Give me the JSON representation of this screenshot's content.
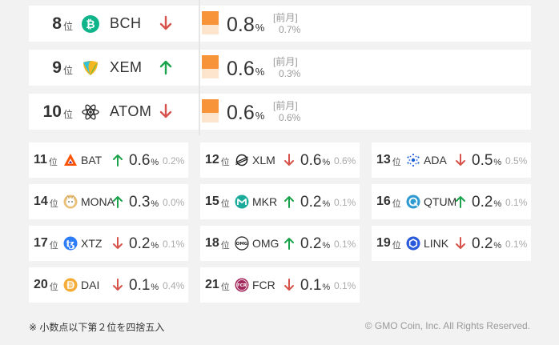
{
  "colors": {
    "up": "#1aa34a",
    "down": "#d6524a",
    "bar": "#f7943a",
    "bar_light": "#fde4cc"
  },
  "top": [
    {
      "rank": "8",
      "unit": "位",
      "symbol": "BCH",
      "direction": "down",
      "icon": "bch-icon",
      "pct": "0.8",
      "pct_unit": "%",
      "prev_label": "[前月]",
      "prev": "0.7%"
    },
    {
      "rank": "9",
      "unit": "位",
      "symbol": "XEM",
      "direction": "up",
      "icon": "xem-icon",
      "pct": "0.6",
      "pct_unit": "%",
      "prev_label": "[前月]",
      "prev": "0.3%"
    },
    {
      "rank": "10",
      "unit": "位",
      "symbol": "ATOM",
      "direction": "down",
      "icon": "atom-icon",
      "pct": "0.6",
      "pct_unit": "%",
      "prev_label": "[前月]",
      "prev": "0.6%"
    }
  ],
  "rows": [
    [
      {
        "rank": "11",
        "unit": "位",
        "symbol": "BAT",
        "direction": "up",
        "icon": "bat-icon",
        "pct": "0.6",
        "pct_unit": "%",
        "prev": "0.2%"
      },
      {
        "rank": "12",
        "unit": "位",
        "symbol": "XLM",
        "direction": "down",
        "icon": "xlm-icon",
        "pct": "0.6",
        "pct_unit": "%",
        "prev": "0.6%"
      },
      {
        "rank": "13",
        "unit": "位",
        "symbol": "ADA",
        "direction": "down",
        "icon": "ada-icon",
        "pct": "0.5",
        "pct_unit": "%",
        "prev": "0.5%"
      }
    ],
    [
      {
        "rank": "14",
        "unit": "位",
        "symbol": "MONA",
        "direction": "up",
        "icon": "mona-icon",
        "pct": "0.3",
        "pct_unit": "%",
        "prev": "0.0%"
      },
      {
        "rank": "15",
        "unit": "位",
        "symbol": "MKR",
        "direction": "up",
        "icon": "mkr-icon",
        "pct": "0.2",
        "pct_unit": "%",
        "prev": "0.1%"
      },
      {
        "rank": "16",
        "unit": "位",
        "symbol": "QTUM",
        "direction": "up",
        "icon": "qtum-icon",
        "pct": "0.2",
        "pct_unit": "%",
        "prev": "0.1%"
      }
    ],
    [
      {
        "rank": "17",
        "unit": "位",
        "symbol": "XTZ",
        "direction": "down",
        "icon": "xtz-icon",
        "pct": "0.2",
        "pct_unit": "%",
        "prev": "0.1%"
      },
      {
        "rank": "18",
        "unit": "位",
        "symbol": "OMG",
        "direction": "up",
        "icon": "omg-icon",
        "pct": "0.2",
        "pct_unit": "%",
        "prev": "0.1%"
      },
      {
        "rank": "19",
        "unit": "位",
        "symbol": "LINK",
        "direction": "down",
        "icon": "link-icon",
        "pct": "0.2",
        "pct_unit": "%",
        "prev": "0.1%"
      }
    ],
    [
      {
        "rank": "20",
        "unit": "位",
        "symbol": "DAI",
        "direction": "down",
        "icon": "dai-icon",
        "pct": "0.1",
        "pct_unit": "%",
        "prev": "0.4%"
      },
      {
        "rank": "21",
        "unit": "位",
        "symbol": "FCR",
        "direction": "down",
        "icon": "fcr-icon",
        "pct": "0.1",
        "pct_unit": "%",
        "prev": "0.1%"
      }
    ]
  ],
  "footer": {
    "note": "※ 小数点以下第２位を四捨五入",
    "copyright": "© GMO Coin, Inc. All Rights Reserved."
  }
}
